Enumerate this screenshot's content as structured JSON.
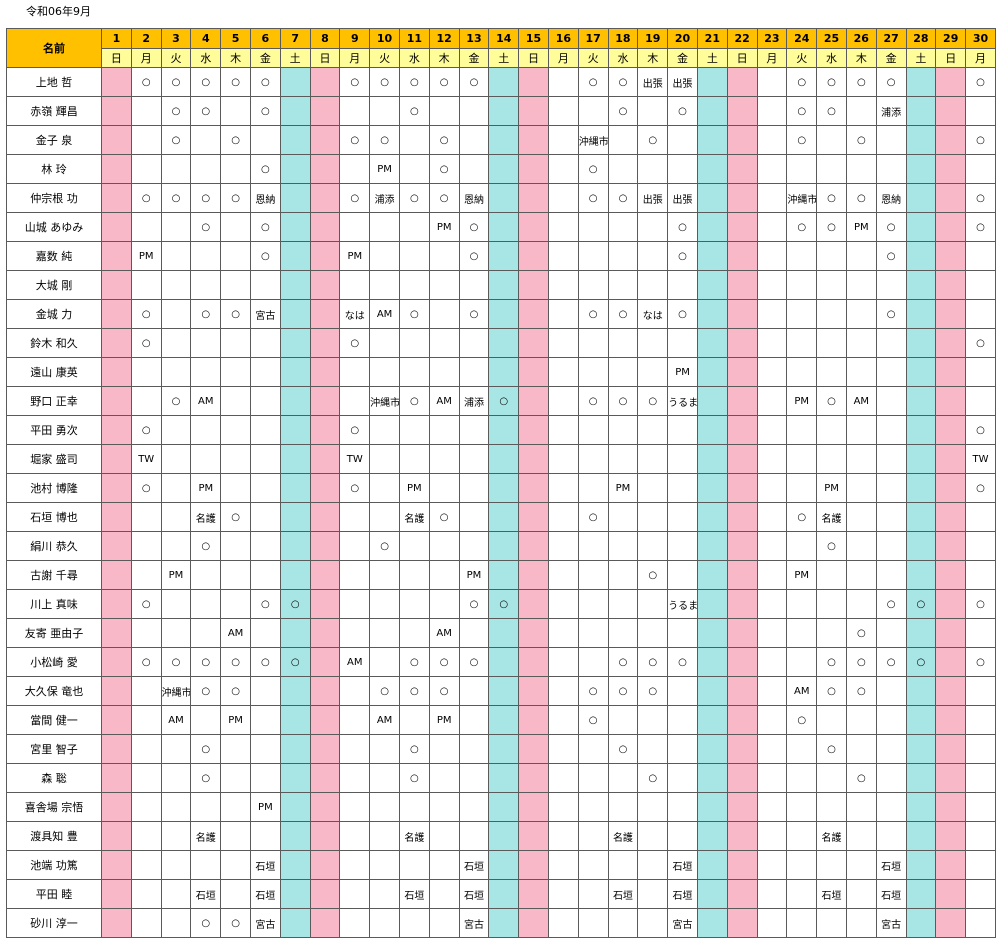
{
  "title": "令和06年9月",
  "name_header": "名前",
  "days": [
    "1",
    "2",
    "3",
    "4",
    "5",
    "6",
    "7",
    "8",
    "9",
    "10",
    "11",
    "12",
    "13",
    "14",
    "15",
    "16",
    "17",
    "18",
    "19",
    "20",
    "21",
    "22",
    "23",
    "24",
    "25",
    "26",
    "27",
    "28",
    "29",
    "30"
  ],
  "weekdays": [
    "日",
    "月",
    "火",
    "水",
    "木",
    "金",
    "土",
    "日",
    "月",
    "火",
    "水",
    "木",
    "金",
    "土",
    "日",
    "月",
    "火",
    "水",
    "木",
    "金",
    "土",
    "日",
    "月",
    "火",
    "水",
    "木",
    "金",
    "土",
    "日",
    "月"
  ],
  "colors": {
    "sunday": "#f9b8c8",
    "saturday": "#a8e6e6",
    "header_day": "#ffc000",
    "header_weekday": "#fffc9a",
    "name_header": "#9dc3e6"
  },
  "rows": [
    {
      "name": "上地 哲",
      "cells": {
        "2": "○",
        "3": "○",
        "4": "○",
        "5": "○",
        "6": "○",
        "9": "○",
        "10": "○",
        "11": "○",
        "12": "○",
        "13": "○",
        "17": "○",
        "18": "○",
        "19": "出張",
        "20": "出張",
        "24": "○",
        "25": "○",
        "26": "○",
        "27": "○",
        "30": "○"
      }
    },
    {
      "name": "赤嶺 輝昌",
      "cells": {
        "3": "○",
        "4": "○",
        "6": "○",
        "11": "○",
        "18": "○",
        "20": "○",
        "24": "○",
        "25": "○",
        "27": "浦添"
      }
    },
    {
      "name": "金子 泉",
      "cells": {
        "3": "○",
        "5": "○",
        "9": "○",
        "10": "○",
        "12": "○",
        "17": "沖縄市",
        "19": "○",
        "24": "○",
        "26": "○",
        "30": "○"
      }
    },
    {
      "name": "林 玲",
      "cells": {
        "6": "○",
        "10": "PM",
        "12": "○",
        "17": "○"
      }
    },
    {
      "name": "仲宗根 功",
      "cells": {
        "2": "○",
        "3": "○",
        "4": "○",
        "5": "○",
        "6": "恩納",
        "9": "○",
        "10": "浦添",
        "11": "○",
        "12": "○",
        "13": "恩納",
        "17": "○",
        "18": "○",
        "19": "出張",
        "20": "出張",
        "24": "沖縄市",
        "25": "○",
        "26": "○",
        "27": "恩納",
        "30": "○"
      }
    },
    {
      "name": "山城 あゆみ",
      "cells": {
        "4": "○",
        "6": "○",
        "12": "PM",
        "13": "○",
        "20": "○",
        "24": "○",
        "25": "○",
        "26": "PM",
        "27": "○",
        "30": "○"
      }
    },
    {
      "name": "嘉数 純",
      "cells": {
        "2": "PM",
        "6": "○",
        "9": "PM",
        "13": "○",
        "20": "○",
        "27": "○"
      }
    },
    {
      "name": "大城 剛",
      "cells": {}
    },
    {
      "name": "金城 力",
      "cells": {
        "2": "○",
        "4": "○",
        "5": "○",
        "6": "宮古",
        "9": "なは",
        "10": "AM",
        "11": "○",
        "13": "○",
        "17": "○",
        "18": "○",
        "19": "なは",
        "20": "○",
        "27": "○"
      }
    },
    {
      "name": "鈴木 和久",
      "cells": {
        "2": "○",
        "9": "○",
        "30": "○"
      }
    },
    {
      "name": "遠山 康英",
      "cells": {
        "20": "PM"
      }
    },
    {
      "name": "野口 正幸",
      "cells": {
        "3": "○",
        "4": "AM",
        "10": "沖縄市",
        "11": "○",
        "12": "AM",
        "13": "浦添",
        "14": "○",
        "17": "○",
        "18": "○",
        "19": "○",
        "20": "うるま",
        "24": "PM",
        "25": "○",
        "26": "AM"
      }
    },
    {
      "name": "平田 勇次",
      "cells": {
        "2": "○",
        "9": "○",
        "30": "○"
      }
    },
    {
      "name": "堀家 盛司",
      "cells": {
        "2": "TW",
        "9": "TW",
        "30": "TW"
      }
    },
    {
      "name": "池村 博隆",
      "cells": {
        "2": "○",
        "4": "PM",
        "9": "○",
        "11": "PM",
        "18": "PM",
        "25": "PM",
        "30": "○"
      }
    },
    {
      "name": "石垣 博也",
      "cells": {
        "4": "名護",
        "5": "○",
        "11": "名護",
        "12": "○",
        "17": "○",
        "24": "○",
        "25": "名護"
      }
    },
    {
      "name": "絹川 恭久",
      "cells": {
        "4": "○",
        "10": "○",
        "25": "○"
      }
    },
    {
      "name": "古謝 千尋",
      "cells": {
        "3": "PM",
        "13": "PM",
        "19": "○",
        "24": "PM"
      }
    },
    {
      "name": "川上 真味",
      "cells": {
        "2": "○",
        "6": "○",
        "7": "○",
        "13": "○",
        "14": "○",
        "20": "うるま",
        "27": "○",
        "28": "○",
        "30": "○"
      }
    },
    {
      "name": "友寄 亜由子",
      "cells": {
        "5": "AM",
        "12": "AM",
        "26": "○"
      }
    },
    {
      "name": "小松崎 愛",
      "cells": {
        "2": "○",
        "3": "○",
        "4": "○",
        "5": "○",
        "6": "○",
        "7": "○",
        "9": "AM",
        "11": "○",
        "12": "○",
        "13": "○",
        "18": "○",
        "19": "○",
        "20": "○",
        "25": "○",
        "26": "○",
        "27": "○",
        "28": "○",
        "30": "○"
      }
    },
    {
      "name": "大久保 竜也",
      "cells": {
        "3": "沖縄市",
        "4": "○",
        "5": "○",
        "10": "○",
        "11": "○",
        "12": "○",
        "17": "○",
        "18": "○",
        "19": "○",
        "24": "AM",
        "25": "○",
        "26": "○"
      }
    },
    {
      "name": "當間 健一",
      "cells": {
        "3": "AM",
        "5": "PM",
        "10": "AM",
        "12": "PM",
        "17": "○",
        "24": "○"
      }
    },
    {
      "name": "宮里 智子",
      "cells": {
        "4": "○",
        "11": "○",
        "18": "○",
        "25": "○"
      }
    },
    {
      "name": "森 聡",
      "cells": {
        "4": "○",
        "11": "○",
        "19": "○",
        "26": "○"
      }
    },
    {
      "name": "喜舎場 宗悟",
      "cells": {
        "6": "PM"
      }
    },
    {
      "name": "渡具知 豊",
      "cells": {
        "4": "名護",
        "11": "名護",
        "18": "名護",
        "25": "名護"
      }
    },
    {
      "name": "池端 功篤",
      "cells": {
        "6": "石垣",
        "13": "石垣",
        "20": "石垣",
        "27": "石垣"
      }
    },
    {
      "name": "平田 睦",
      "cells": {
        "4": "石垣",
        "6": "石垣",
        "11": "石垣",
        "13": "石垣",
        "18": "石垣",
        "20": "石垣",
        "25": "石垣",
        "27": "石垣"
      }
    },
    {
      "name": "砂川 淳一",
      "cells": {
        "4": "○",
        "5": "○",
        "6": "宮古",
        "13": "宮古",
        "20": "宮古",
        "27": "宮古"
      }
    }
  ]
}
